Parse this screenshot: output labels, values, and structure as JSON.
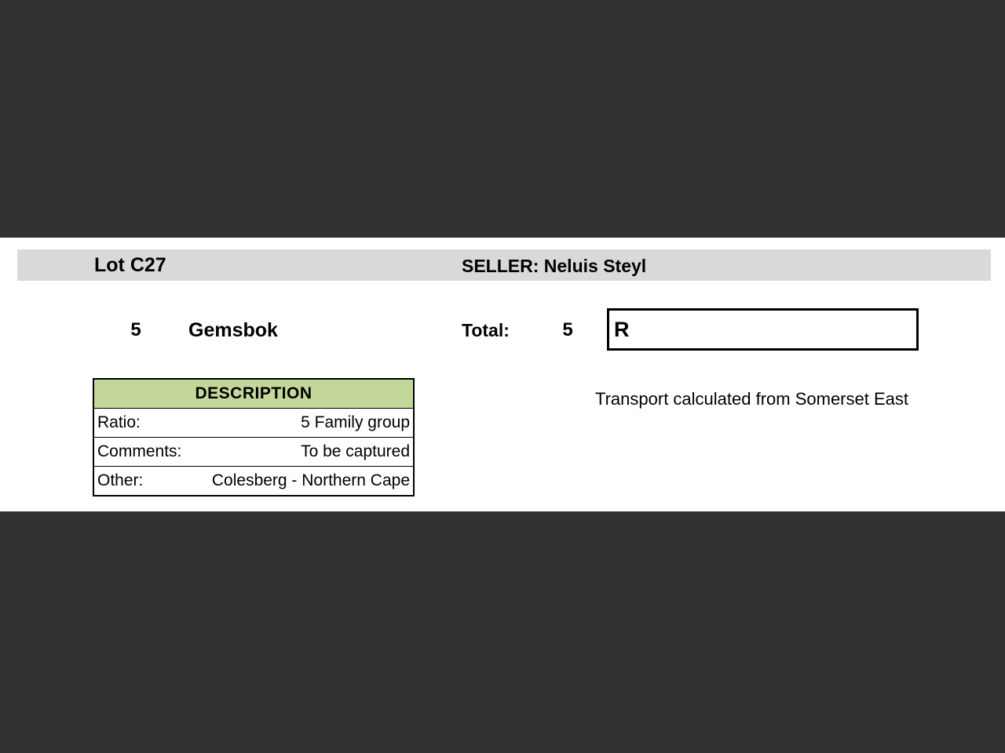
{
  "colors": {
    "dark_band": "#313131",
    "header_bar_bg": "#d9d9d9",
    "table_header_bg": "#c4d79b"
  },
  "header": {
    "lot_label": "Lot C27",
    "seller_label": "SELLER: Neluis Steyl"
  },
  "lot_line": {
    "quantity": "5",
    "species": "Gemsbok",
    "total_label": "Total:",
    "total_value": "5",
    "currency_prefix": "R"
  },
  "description_table": {
    "header": "DESCRIPTION",
    "rows": [
      {
        "label": "Ratio:",
        "value": "5 Family group"
      },
      {
        "label": "Comments:",
        "value": "To be captured"
      },
      {
        "label": "Other:",
        "value": "Colesberg - Northern Cape"
      }
    ]
  },
  "notes": {
    "transport": "Transport calculated from Somerset East"
  }
}
